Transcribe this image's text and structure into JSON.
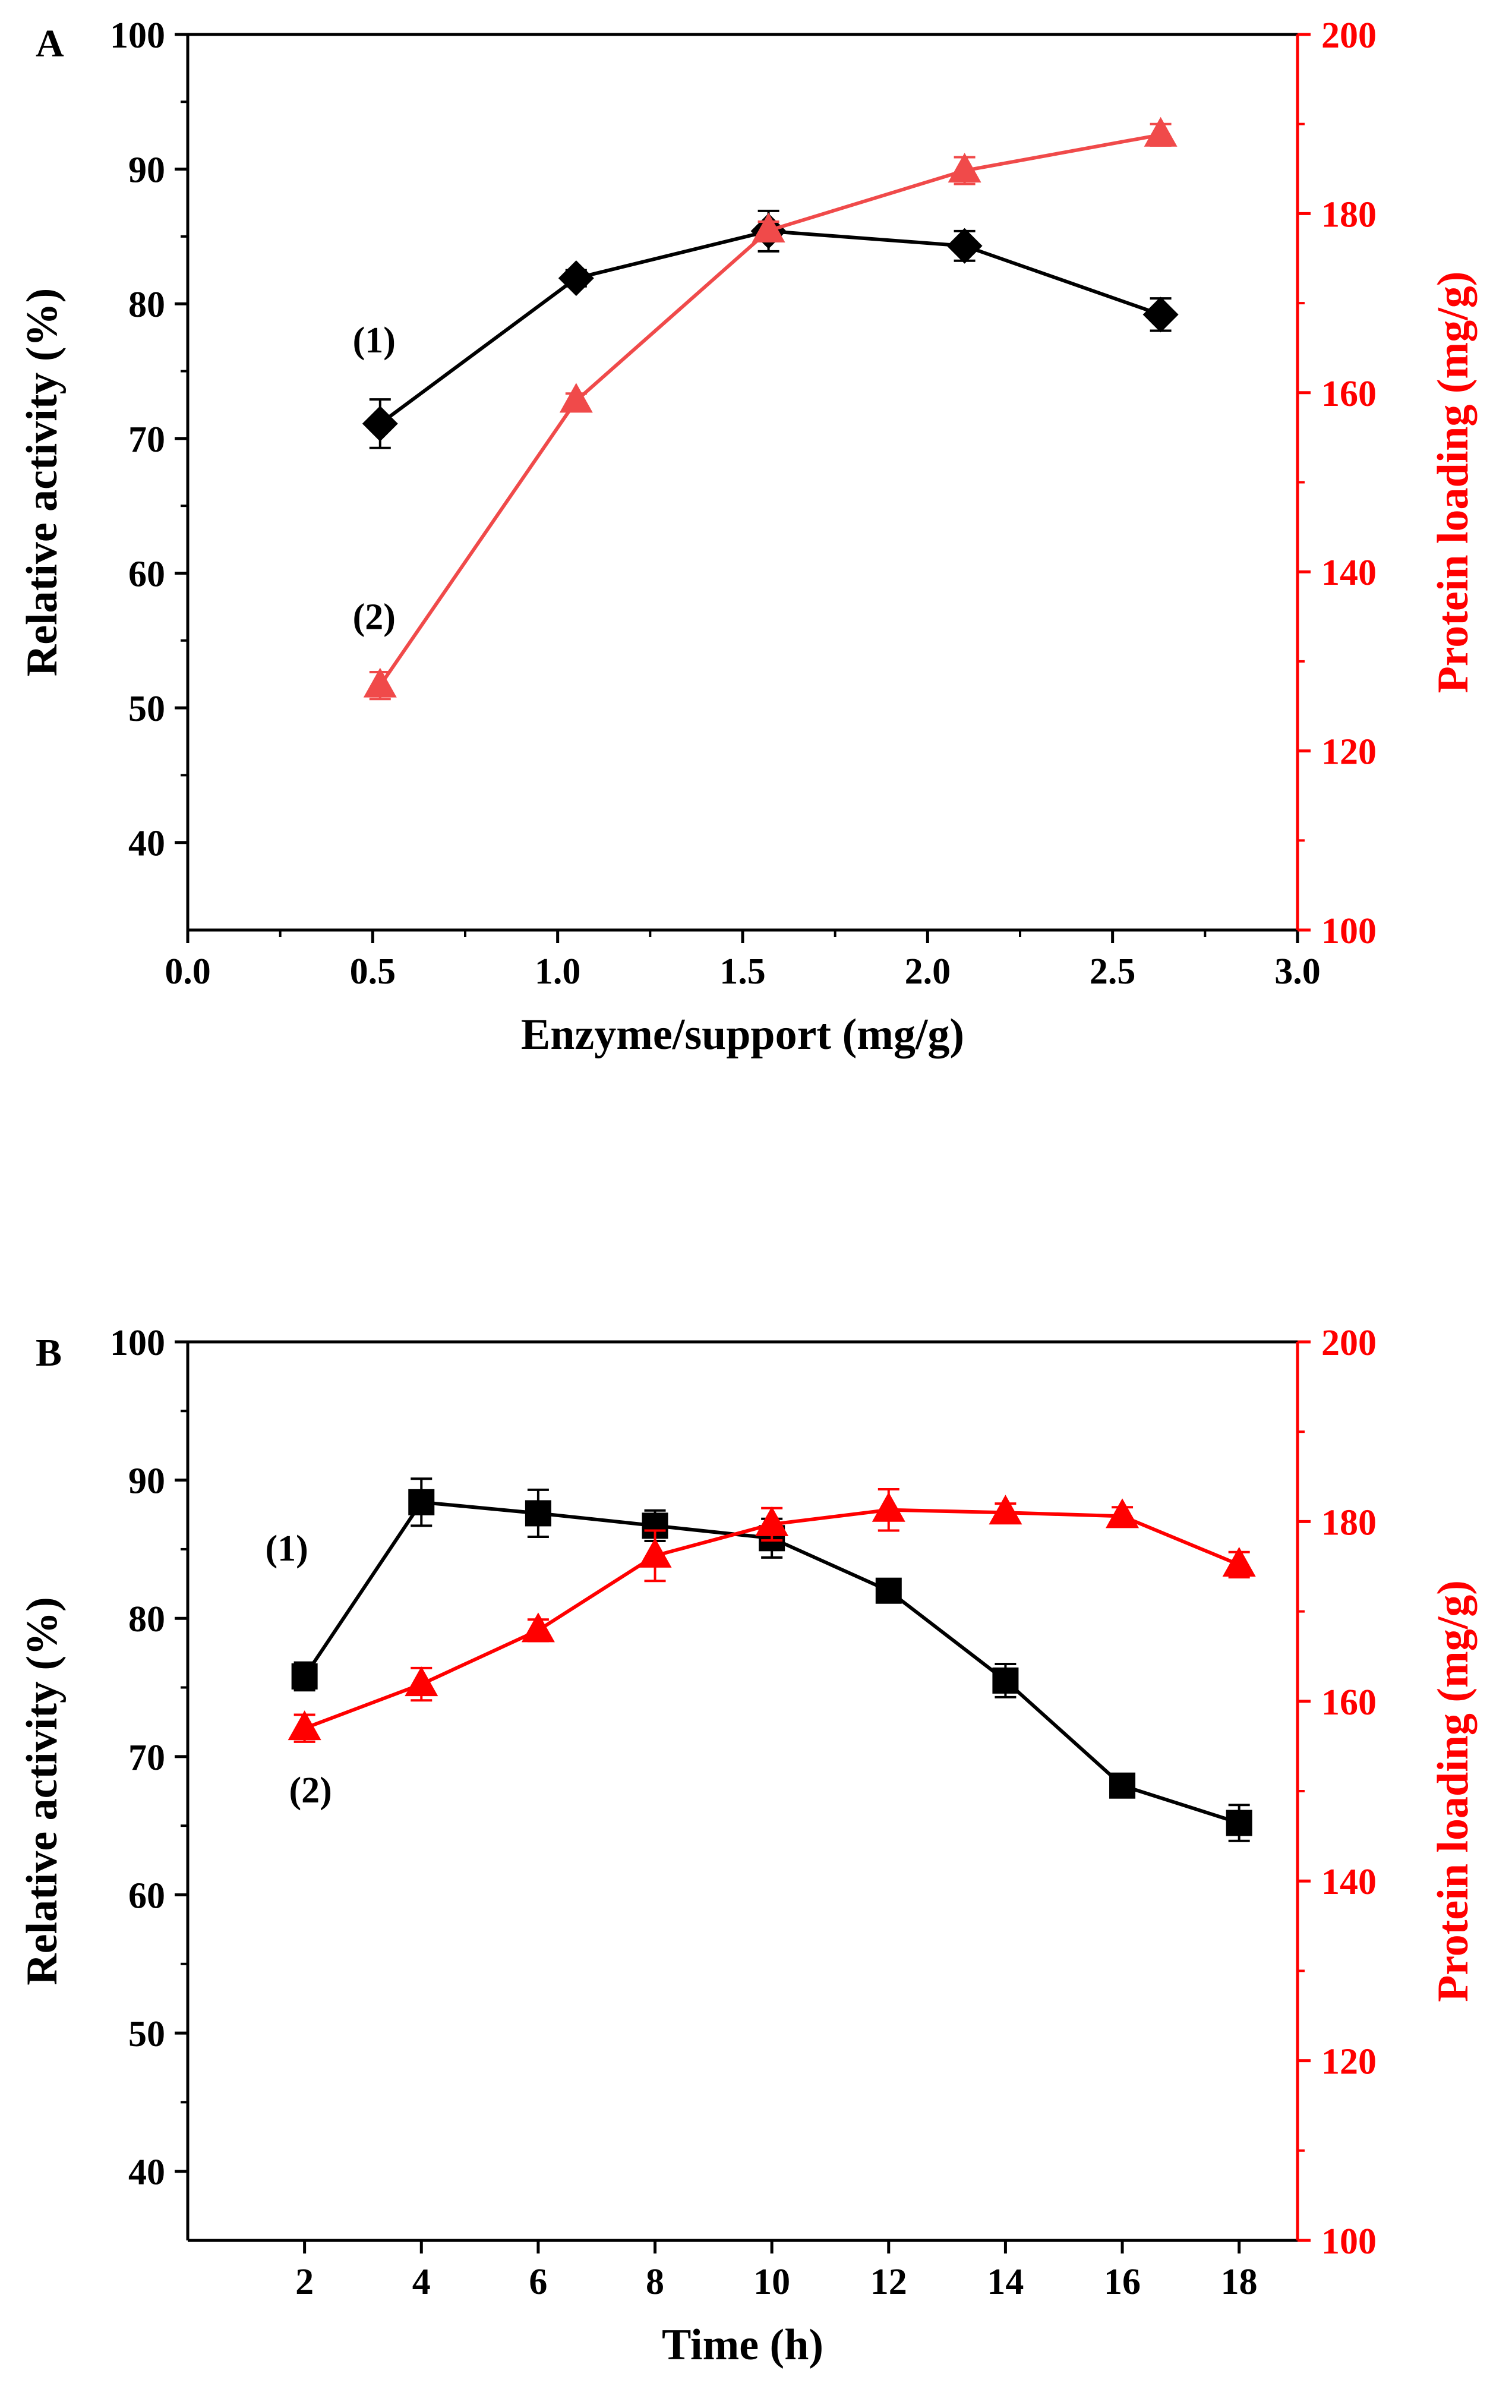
{
  "colors": {
    "left_series": "#000000",
    "right_series_a": "#f04a4a",
    "right_series_b": "#ff0000",
    "right_axis": "#ff0000"
  },
  "chart_data": [
    {
      "type": "line",
      "panel_label": "A",
      "xlabel": "Enzyme/support (mg/g)",
      "ylabel": "Relative activity (%)",
      "y2label": "Protein loading (mg/g)",
      "xlim": [
        0.0,
        3.0
      ],
      "ylim": [
        33.5,
        100
      ],
      "y2lim": [
        100,
        200
      ],
      "x_ticks": [
        "0.0",
        "0.5",
        "1.0",
        "1.5",
        "2.0",
        "2.5",
        "3.0"
      ],
      "y_ticks": [
        "40",
        "50",
        "60",
        "70",
        "80",
        "90",
        "100"
      ],
      "y2_ticks": [
        "100",
        "120",
        "140",
        "160",
        "180",
        "200"
      ],
      "series": [
        {
          "name": "(1)",
          "axis": "left",
          "marker": "diamond",
          "x": [
            0.52,
            1.05,
            1.57,
            2.1,
            2.63
          ],
          "values": [
            71.1,
            81.9,
            85.4,
            84.3,
            79.2
          ],
          "errors": [
            1.8,
            0.6,
            1.5,
            1.1,
            1.2
          ]
        },
        {
          "name": "(2)",
          "axis": "right",
          "marker": "triangle",
          "x": [
            0.52,
            1.05,
            1.57,
            2.1,
            2.63
          ],
          "values": [
            127.3,
            159.1,
            178.1,
            184.8,
            188.8
          ],
          "errors": [
            1.5,
            0.8,
            1.0,
            1.5,
            1.2
          ]
        }
      ]
    },
    {
      "type": "line",
      "panel_label": "B",
      "xlabel": "Time (h)",
      "ylabel": "Relative activity (%)",
      "y2label": "Protein loading (mg/g)",
      "xlim": [
        0,
        19
      ],
      "ylim": [
        35,
        100
      ],
      "y2lim": [
        100,
        200
      ],
      "x_ticks": [
        "2",
        "4",
        "6",
        "8",
        "10",
        "12",
        "14",
        "16",
        "18"
      ],
      "y_ticks": [
        "40",
        "50",
        "60",
        "70",
        "80",
        "90",
        "100"
      ],
      "y2_ticks": [
        "100",
        "120",
        "140",
        "160",
        "180",
        "200"
      ],
      "series": [
        {
          "name": "(1)",
          "axis": "left",
          "marker": "square",
          "x": [
            2,
            4,
            6,
            8,
            10,
            12,
            14,
            16,
            18
          ],
          "values": [
            75.8,
            88.4,
            87.6,
            86.7,
            85.8,
            82.0,
            75.5,
            67.9,
            65.2
          ],
          "errors": [
            1.0,
            1.7,
            1.7,
            1.1,
            1.4,
            0.6,
            1.2,
            0.6,
            1.3
          ]
        },
        {
          "name": "(2)",
          "axis": "right",
          "marker": "triangle",
          "x": [
            2,
            4,
            6,
            8,
            10,
            12,
            14,
            16,
            18
          ],
          "values": [
            157.0,
            161.9,
            167.9,
            176.2,
            179.7,
            181.3,
            181.0,
            180.6,
            175.2
          ],
          "errors": [
            1.5,
            1.8,
            1.2,
            2.8,
            1.8,
            2.3,
            1.0,
            1.0,
            1.4
          ]
        }
      ]
    }
  ]
}
